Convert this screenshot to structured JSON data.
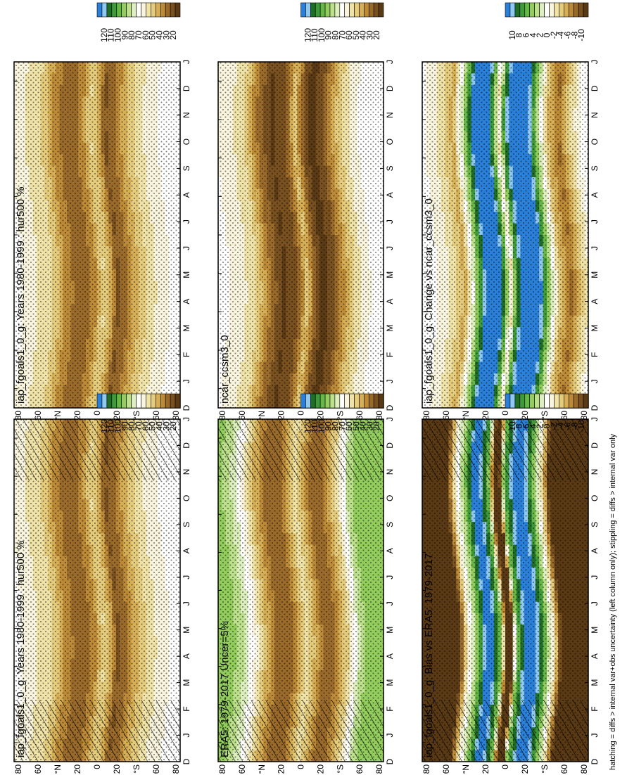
{
  "figure_note": "hatching = diffs > internal var+obs uncertainty (left column only); stippling = diffs > internal var only",
  "colors": {
    "climate_scale": [
      "#2a80d8",
      "#8fc8f0",
      "#1f6d27",
      "#3f9a3a",
      "#67b648",
      "#92cd5d",
      "#bce08b",
      "#ddefbf",
      "#ffffff",
      "#f8f4dd",
      "#f0e3a8",
      "#e5cc7d",
      "#d6ae55",
      "#bd8b38",
      "#9a6a2a",
      "#79501f",
      "#5a3a14"
    ],
    "diff_scale": [
      "#2a80d8",
      "#8fc8f0",
      "#1f6d27",
      "#3f9a3a",
      "#67b648",
      "#92cd5d",
      "#bce08b",
      "#ddefbf",
      "#ffffff",
      "#f8f4dd",
      "#f0e3a8",
      "#e5cc7d",
      "#d6ae55",
      "#bd8b38",
      "#9a6a2a",
      "#79501f",
      "#5a3a14"
    ]
  },
  "chart_data": [
    {
      "type": "heatmap",
      "id": "p1",
      "title": "iap_fgoals1_0_g: Years 1980-1999 : hur500 %",
      "x": [
        "J",
        "F",
        "M",
        "A",
        "M",
        "J",
        "J",
        "A",
        "S",
        "O",
        "N",
        "D",
        "J"
      ],
      "lat_ticks": [
        "80",
        "60",
        "°N",
        "20",
        "0",
        "20",
        "°S",
        "60",
        "80"
      ],
      "x_label_start": "D",
      "colorbar": [
        "120",
        "110",
        "100",
        "90",
        "80",
        "70",
        "60",
        "50",
        "40",
        "30",
        "20"
      ],
      "overlay": "hatch+stipple",
      "field_profile": [
        [
          -90,
          68
        ],
        [
          -75,
          62
        ],
        [
          -55,
          55
        ],
        [
          -40,
          40
        ],
        [
          -25,
          30
        ],
        [
          -10,
          38
        ],
        [
          0,
          55
        ],
        [
          8,
          45
        ],
        [
          15,
          28
        ],
        [
          25,
          35
        ],
        [
          40,
          50
        ],
        [
          55,
          60
        ],
        [
          75,
          68
        ],
        [
          90,
          72
        ]
      ]
    },
    {
      "type": "heatmap",
      "id": "p2",
      "title": "iap_fgoals1_0_g: Years 1980-1999 : hur500 %",
      "x": [
        "J",
        "F",
        "M",
        "A",
        "M",
        "J",
        "J",
        "A",
        "S",
        "O",
        "N",
        "D",
        "J"
      ],
      "lat_ticks": [
        "80",
        "60",
        "°N",
        "20",
        "0",
        "20",
        "°S",
        "60",
        "80"
      ],
      "x_label_start": "D",
      "colorbar": [
        "120",
        "110",
        "100",
        "90",
        "80",
        "70",
        "60",
        "50",
        "40",
        "30",
        "20"
      ],
      "overlay": "stipple",
      "field_profile": [
        [
          -90,
          68
        ],
        [
          -75,
          62
        ],
        [
          -55,
          55
        ],
        [
          -40,
          40
        ],
        [
          -25,
          30
        ],
        [
          -10,
          38
        ],
        [
          0,
          55
        ],
        [
          8,
          45
        ],
        [
          15,
          28
        ],
        [
          25,
          35
        ],
        [
          40,
          50
        ],
        [
          55,
          60
        ],
        [
          75,
          68
        ],
        [
          90,
          72
        ]
      ]
    },
    {
      "type": "heatmap",
      "id": "p3",
      "title": "ERA5: 1979-2017 Uncer=5%",
      "x": [
        "J",
        "F",
        "M",
        "A",
        "M",
        "J",
        "J",
        "A",
        "S",
        "O",
        "N",
        "D",
        "J"
      ],
      "lat_ticks": [
        "80",
        "60",
        "°N",
        "20",
        "0",
        "20",
        "°S",
        "60",
        "80"
      ],
      "x_label_start": "D",
      "colorbar": [
        "120",
        "110",
        "100",
        "90",
        "80",
        "70",
        "60",
        "50",
        "40",
        "30",
        "20"
      ],
      "overlay": "hatch+stipple",
      "field_profile": [
        [
          -90,
          88
        ],
        [
          -75,
          85
        ],
        [
          -60,
          70
        ],
        [
          -45,
          48
        ],
        [
          -30,
          30
        ],
        [
          -15,
          35
        ],
        [
          0,
          58
        ],
        [
          10,
          45
        ],
        [
          20,
          30
        ],
        [
          30,
          35
        ],
        [
          45,
          55
        ],
        [
          60,
          85
        ],
        [
          75,
          88
        ],
        [
          90,
          90
        ]
      ]
    },
    {
      "type": "heatmap",
      "id": "p4",
      "title": "ncar_ccsm3_0",
      "x": [
        "J",
        "F",
        "M",
        "A",
        "M",
        "J",
        "J",
        "A",
        "S",
        "O",
        "N",
        "D",
        "J"
      ],
      "lat_ticks": [
        "80",
        "60",
        "°N",
        "20",
        "0",
        "20",
        "°S",
        "60",
        "80"
      ],
      "x_label_start": "D",
      "colorbar": [
        "120",
        "110",
        "100",
        "90",
        "80",
        "70",
        "60",
        "50",
        "40",
        "30",
        "20"
      ],
      "overlay": "stipple",
      "field_profile": [
        [
          -90,
          68
        ],
        [
          -75,
          65
        ],
        [
          -55,
          55
        ],
        [
          -40,
          35
        ],
        [
          -25,
          22
        ],
        [
          -10,
          30
        ],
        [
          0,
          50
        ],
        [
          8,
          32
        ],
        [
          18,
          20
        ],
        [
          30,
          28
        ],
        [
          45,
          48
        ],
        [
          60,
          62
        ],
        [
          75,
          70
        ],
        [
          90,
          72
        ]
      ]
    },
    {
      "type": "heatmap",
      "id": "p5",
      "title": "iap_fgoals1_0_g: Bias vs ERA5: 1979-2017",
      "x": [
        "J",
        "F",
        "M",
        "A",
        "M",
        "J",
        "J",
        "A",
        "S",
        "O",
        "N",
        "D",
        "J"
      ],
      "lat_ticks": [
        "80",
        "60",
        "°N",
        "20",
        "0",
        "20",
        "°S",
        "60",
        "80"
      ],
      "x_label_start": "D",
      "colorbar": [
        "10",
        "8",
        "6",
        "4",
        "2",
        "0",
        "-2",
        "-4",
        "-6",
        "-8",
        "-10"
      ],
      "overlay": "hatch+stipple",
      "field_profile": [
        [
          -90,
          -18
        ],
        [
          -75,
          -18
        ],
        [
          -60,
          -14
        ],
        [
          -48,
          -2
        ],
        [
          -35,
          5
        ],
        [
          -25,
          12
        ],
        [
          -12,
          5
        ],
        [
          -5,
          -12
        ],
        [
          0,
          -12
        ],
        [
          5,
          4
        ],
        [
          12,
          8
        ],
        [
          22,
          12
        ],
        [
          35,
          6
        ],
        [
          48,
          -4
        ],
        [
          60,
          -16
        ],
        [
          75,
          -18
        ],
        [
          90,
          -18
        ]
      ]
    },
    {
      "type": "heatmap",
      "id": "p6",
      "title": "iap_fgoals1_0_g: Change vs ncar_ccsm3_0",
      "x": [
        "J",
        "F",
        "M",
        "A",
        "M",
        "J",
        "J",
        "A",
        "S",
        "O",
        "N",
        "D",
        "J"
      ],
      "lat_ticks": [
        "80",
        "60",
        "°N",
        "20",
        "0",
        "20",
        "°S",
        "60",
        "80"
      ],
      "x_label_start": "D",
      "colorbar": [
        "10",
        "8",
        "6",
        "4",
        "2",
        "0",
        "-2",
        "-4",
        "-6",
        "-8",
        "-10"
      ],
      "overlay": "stipple",
      "field_profile": [
        [
          -90,
          0
        ],
        [
          -75,
          -1
        ],
        [
          -60,
          -3
        ],
        [
          -50,
          -5
        ],
        [
          -38,
          3
        ],
        [
          -25,
          12
        ],
        [
          -12,
          10
        ],
        [
          -5,
          4
        ],
        [
          0,
          -2
        ],
        [
          5,
          6
        ],
        [
          15,
          12
        ],
        [
          28,
          12
        ],
        [
          40,
          4
        ],
        [
          52,
          -4
        ],
        [
          65,
          -7
        ],
        [
          78,
          -3
        ],
        [
          90,
          0
        ]
      ]
    }
  ]
}
